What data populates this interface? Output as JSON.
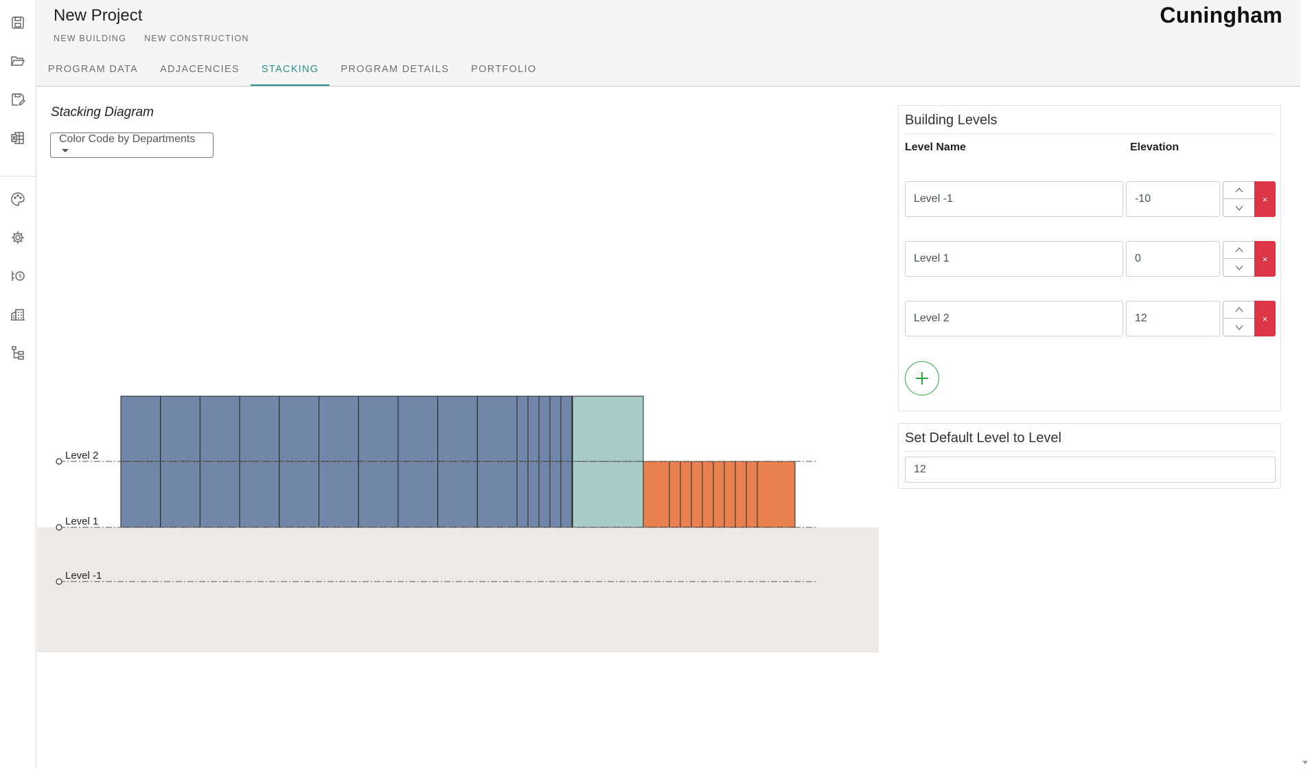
{
  "rail": {
    "top_icons": [
      "save-icon",
      "folder-open-icon",
      "save-as-icon",
      "excel-export-icon"
    ],
    "bottom_icons": [
      "palette-icon",
      "gear-icon",
      "history-icon",
      "building-icon",
      "hierarchy-icon"
    ]
  },
  "header": {
    "project_name": "New Project",
    "subtitles": [
      "NEW BUILDING",
      "NEW CONSTRUCTION"
    ],
    "logo": "Cuningham",
    "tabs": [
      {
        "label": "PROGRAM DATA",
        "active": false
      },
      {
        "label": "ADJACENCIES",
        "active": false
      },
      {
        "label": "STACKING",
        "active": true
      },
      {
        "label": "PROGRAM DETAILS",
        "active": false
      },
      {
        "label": "PORTFOLIO",
        "active": false
      }
    ]
  },
  "main": {
    "title": "Stacking Diagram",
    "color_select": "Color Code by Departments"
  },
  "diagram": {
    "levels": [
      {
        "name": "Level -1",
        "elevation": -10
      },
      {
        "name": "Level 1",
        "elevation": 0
      },
      {
        "name": "Level 2",
        "elevation": 12
      }
    ],
    "colors": {
      "blue": "#7286a8",
      "teal": "#a9cbc5",
      "orange": "#e8804f",
      "ground": "#ede9e6",
      "line": "#222222"
    }
  },
  "building_levels": {
    "title": "Building Levels",
    "col_name": "Level Name",
    "col_elevation": "Elevation",
    "rows": [
      {
        "name": "Level -1",
        "elevation": "-10"
      },
      {
        "name": "Level 1",
        "elevation": "0"
      },
      {
        "name": "Level 2",
        "elevation": "12"
      }
    ],
    "delete_label": "×"
  },
  "default_level": {
    "title": "Set Default Level to Level",
    "value": "12"
  }
}
